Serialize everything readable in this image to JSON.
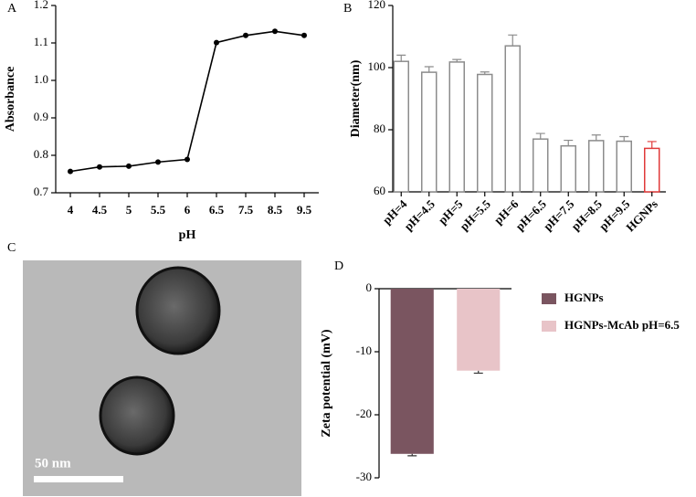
{
  "panel_labels": [
    "A",
    "B",
    "C",
    "D"
  ],
  "chart_data": [
    {
      "type": "line",
      "xlabel": "pH",
      "ylabel": "Absorbance",
      "categories": [
        "4",
        "4.5",
        "5",
        "5.5",
        "6",
        "6.5",
        "7.5",
        "8.5",
        "9.5"
      ],
      "values": [
        0.757,
        0.769,
        0.771,
        0.782,
        0.789,
        1.101,
        1.12,
        1.131,
        1.12
      ],
      "color": "#000000",
      "ylim": [
        0.7,
        1.2
      ],
      "yticks": [
        0.7,
        0.8,
        0.9,
        {
          "value": 1,
          "label": "1.0"
        },
        1.1,
        1.2
      ]
    },
    {
      "type": "bar",
      "ylabel": "Diameter(nm)",
      "categories": [
        "pH=4",
        "pH=4.5",
        "pH=5",
        "pH=5.5",
        "pH=6",
        "pH=6.5",
        "pH=7.5",
        "pH=8.5",
        "pH=9.5",
        "HGNPs"
      ],
      "values": [
        102,
        98.5,
        101.8,
        97.8,
        107,
        77,
        74.8,
        76.5,
        76.3,
        74
      ],
      "errors": [
        2,
        1.8,
        0.8,
        0.8,
        3.5,
        1.8,
        1.8,
        1.8,
        1.5,
        2.2
      ],
      "colors": [
        "#8c8c8c",
        "#8c8c8c",
        "#8c8c8c",
        "#8c8c8c",
        "#8c8c8c",
        "#8c8c8c",
        "#8c8c8c",
        "#8c8c8c",
        "#8c8c8c",
        "#e03a3a"
      ],
      "ylim": [
        60,
        120
      ],
      "yticks": [
        60,
        80,
        100,
        120
      ]
    },
    {
      "type": "bar",
      "ylabel": "Zeta potential (mV)",
      "series": [
        {
          "name": "HGNPs",
          "color": "#7a5560",
          "values": [
            -26.2
          ],
          "errors": [
            0.3
          ]
        },
        {
          "name": "HGNPs-McAb pH=6.5",
          "color": "#e8c4c8",
          "values": [
            -13
          ],
          "errors": [
            0.4
          ]
        }
      ],
      "ylim": [
        -30,
        0
      ],
      "yticks": [
        -30,
        -20,
        -10,
        0
      ],
      "legend": "right"
    }
  ],
  "micrograph": {
    "scale_bar": "50 nm"
  }
}
